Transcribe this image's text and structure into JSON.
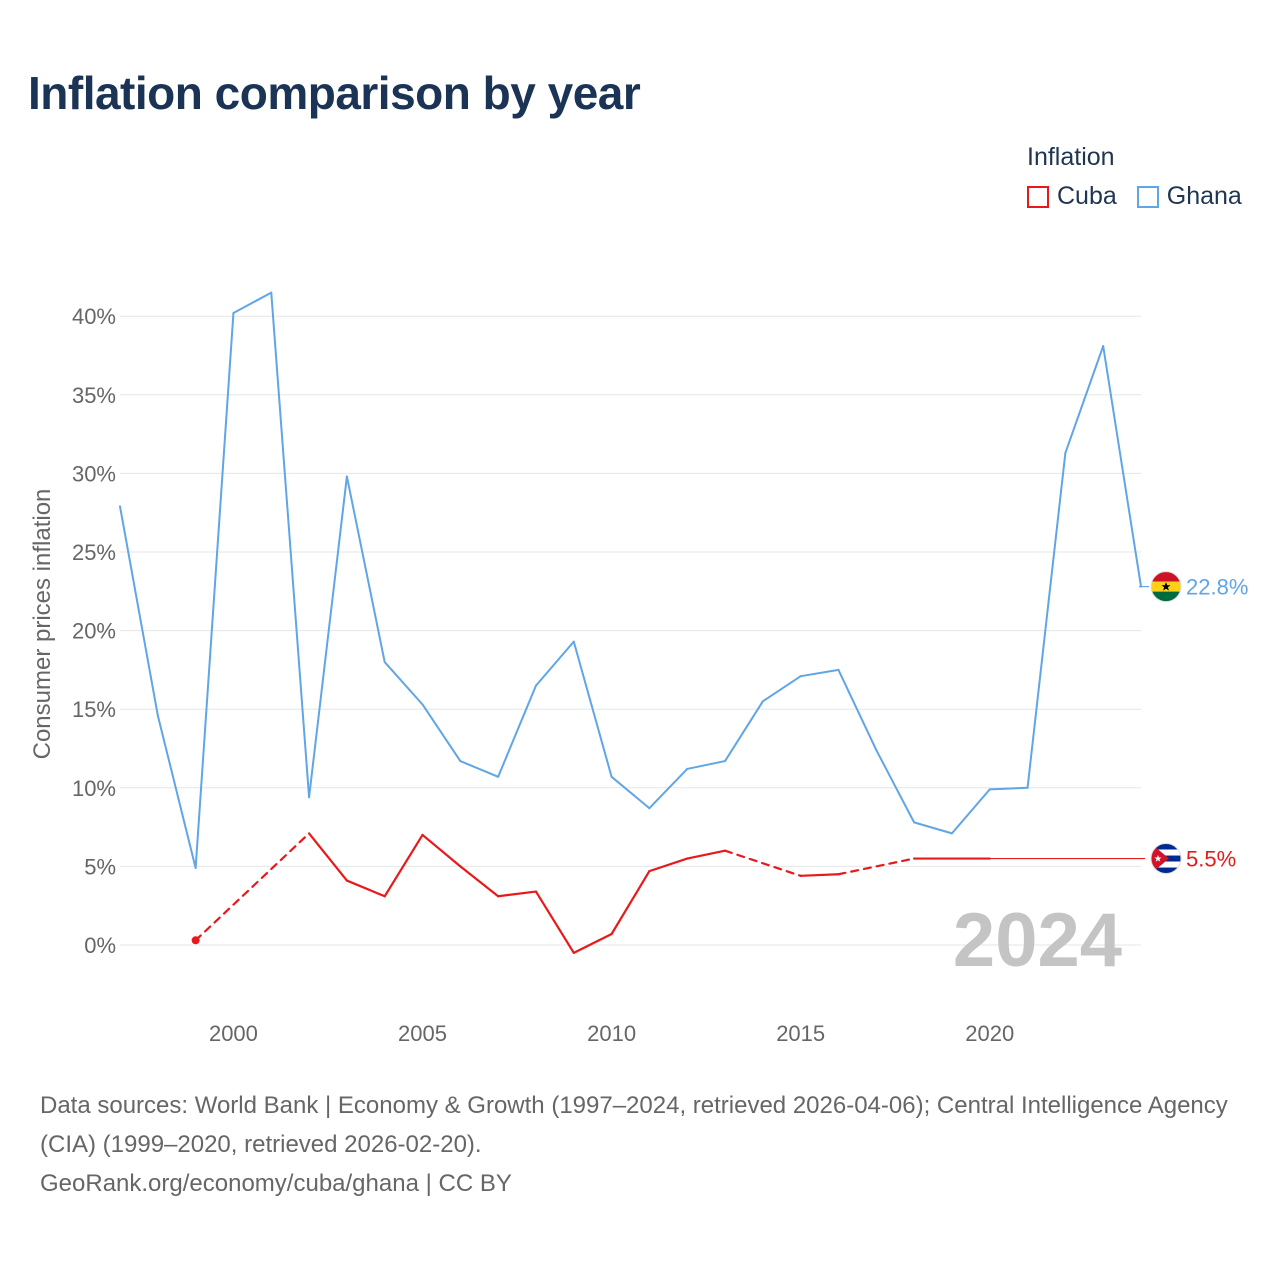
{
  "title": "Inflation comparison by year",
  "legend": {
    "title": "Inflation",
    "items": [
      {
        "label": "Cuba",
        "color": "#e8191a"
      },
      {
        "label": "Ghana",
        "color": "#60a5e6"
      }
    ]
  },
  "chart_data": {
    "type": "line",
    "title": "Inflation comparison by year",
    "ylabel": "Consumer prices inflation",
    "xlabel": "",
    "xlim": [
      1997,
      2024
    ],
    "ylim": [
      -3.5,
      42
    ],
    "x_ticks": [
      2000,
      2005,
      2010,
      2015,
      2020
    ],
    "x_tick_labels": [
      "2000",
      "2005",
      "2010",
      "2015",
      "2020"
    ],
    "y_ticks": [
      0,
      5,
      10,
      15,
      20,
      25,
      30,
      35,
      40
    ],
    "y_tick_labels": [
      "0%",
      "5%",
      "10%",
      "15%",
      "20%",
      "25%",
      "30%",
      "35%",
      "40%"
    ],
    "grid": true,
    "current_year": "2024",
    "series": [
      {
        "name": "Cuba",
        "color": "#e8191a",
        "end_label": "5.5%",
        "end_flag": "cuba-flag-icon",
        "points": [
          {
            "x": 1999,
            "y": 0.3
          },
          {
            "x": 2002,
            "y": 7.1
          },
          {
            "x": 2003,
            "y": 4.1
          },
          {
            "x": 2004,
            "y": 3.1
          },
          {
            "x": 2005,
            "y": 7.0
          },
          {
            "x": 2006,
            "y": 5.0
          },
          {
            "x": 2007,
            "y": 3.1
          },
          {
            "x": 2008,
            "y": 3.4
          },
          {
            "x": 2009,
            "y": -0.5
          },
          {
            "x": 2010,
            "y": 0.7
          },
          {
            "x": 2011,
            "y": 4.7
          },
          {
            "x": 2012,
            "y": 5.5
          },
          {
            "x": 2013,
            "y": 6.0
          },
          {
            "x": 2015,
            "y": 4.4
          },
          {
            "x": 2016,
            "y": 4.5
          },
          {
            "x": 2018,
            "y": 5.5
          },
          {
            "x": 2019,
            "y": 5.5
          },
          {
            "x": 2020,
            "y": 5.5
          }
        ],
        "dashed_segments": [
          [
            1999,
            2002
          ],
          [
            2013,
            2015
          ],
          [
            2016,
            2018
          ]
        ],
        "extension_to": 2024,
        "extension_value": 5.5
      },
      {
        "name": "Ghana",
        "color": "#60a5e6",
        "end_label": "22.8%",
        "end_flag": "ghana-flag-icon",
        "points": [
          {
            "x": 1997,
            "y": 27.9
          },
          {
            "x": 1998,
            "y": 14.6
          },
          {
            "x": 1999,
            "y": 4.9
          },
          {
            "x": 2000,
            "y": 40.2
          },
          {
            "x": 2001,
            "y": 41.5
          },
          {
            "x": 2002,
            "y": 9.4
          },
          {
            "x": 2003,
            "y": 29.8
          },
          {
            "x": 2004,
            "y": 18.0
          },
          {
            "x": 2005,
            "y": 15.3
          },
          {
            "x": 2006,
            "y": 11.7
          },
          {
            "x": 2007,
            "y": 10.7
          },
          {
            "x": 2008,
            "y": 16.5
          },
          {
            "x": 2009,
            "y": 19.3
          },
          {
            "x": 2010,
            "y": 10.7
          },
          {
            "x": 2011,
            "y": 8.7
          },
          {
            "x": 2012,
            "y": 11.2
          },
          {
            "x": 2013,
            "y": 11.7
          },
          {
            "x": 2014,
            "y": 15.5
          },
          {
            "x": 2015,
            "y": 17.1
          },
          {
            "x": 2016,
            "y": 17.5
          },
          {
            "x": 2017,
            "y": 12.4
          },
          {
            "x": 2018,
            "y": 7.8
          },
          {
            "x": 2019,
            "y": 7.1
          },
          {
            "x": 2020,
            "y": 9.9
          },
          {
            "x": 2021,
            "y": 10.0
          },
          {
            "x": 2022,
            "y": 31.3
          },
          {
            "x": 2023,
            "y": 38.1
          },
          {
            "x": 2024,
            "y": 22.8
          }
        ],
        "dashed_segments": []
      }
    ]
  },
  "footer": {
    "sources": "Data sources: World Bank | Economy & Growth (1997–2024, retrieved 2026-04-06); Central Intelligence Agency (CIA) (1999–2020, retrieved 2026-02-20).",
    "attribution": "GeoRank.org/economy/cuba/ghana | CC BY"
  }
}
